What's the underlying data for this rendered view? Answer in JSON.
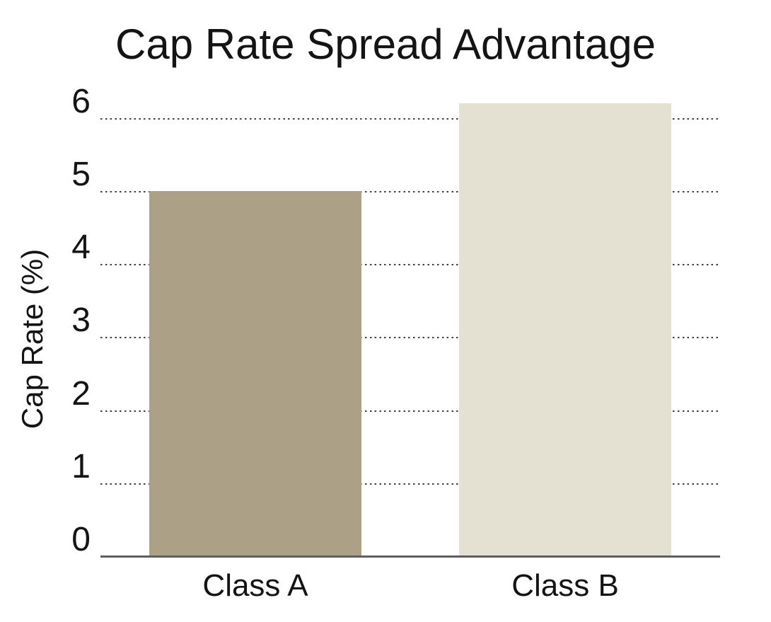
{
  "chart_data": {
    "type": "bar",
    "title": "Cap Rate Spread Advantage",
    "xlabel": "",
    "ylabel": "Cap Rate (%)",
    "categories": [
      "Class A",
      "Class B"
    ],
    "values": [
      5.0,
      6.2
    ],
    "bar_colors": [
      "#aca086",
      "#e5e1d2"
    ],
    "yticks": [
      0,
      1,
      2,
      3,
      4,
      5,
      6
    ],
    "ylim": [
      0,
      6.27
    ],
    "grid": "horizontal-dotted",
    "legend_position": "none"
  },
  "colors": {
    "background": "#ffffff",
    "text": "#141414",
    "axis_line": "#5e5e5e",
    "gridline": "#414141",
    "bar_class_a": "#aca086",
    "bar_class_b": "#e5e1d2"
  }
}
